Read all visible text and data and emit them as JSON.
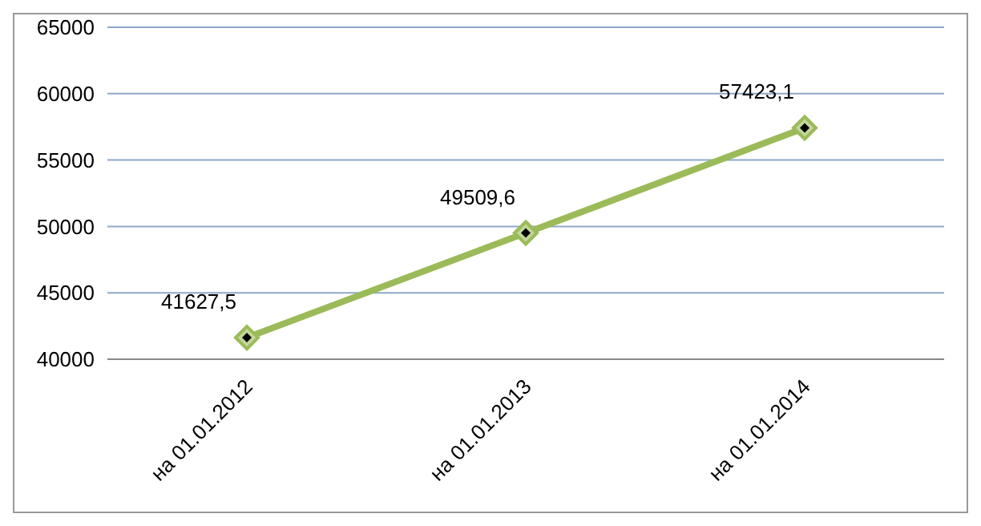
{
  "chart_data": {
    "type": "line",
    "categories": [
      "на 01.01.2012",
      "на 01.01.2013",
      "на 01.01.2014"
    ],
    "series": [
      {
        "color": "#9bbb59",
        "values": [
          41627.5,
          49509.6,
          57423.1
        ],
        "value_labels": [
          "41627,5",
          "49509,6",
          "57423,1"
        ]
      }
    ],
    "ylim": [
      40000,
      65000
    ],
    "yticks": [
      40000,
      45000,
      50000,
      55000,
      60000,
      65000
    ],
    "grid": "y",
    "marker": "diamond",
    "line_style": "solid"
  }
}
